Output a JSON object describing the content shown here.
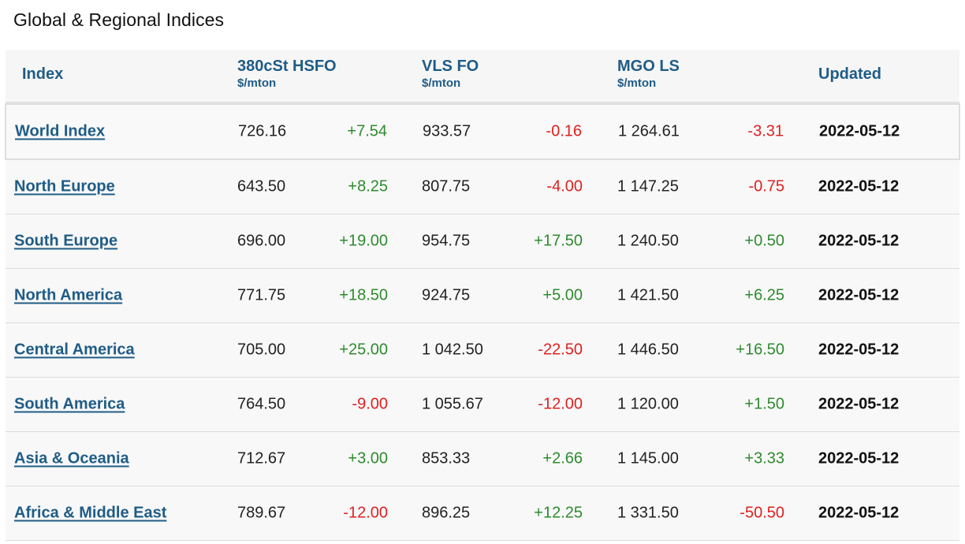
{
  "title": "Global & Regional Indices",
  "headers": {
    "index": "Index",
    "hsfo": "380cSt HSFO",
    "hsfo_unit": "$/mton",
    "vls": "VLS FO",
    "vls_unit": "$/mton",
    "mgo": "MGO LS",
    "mgo_unit": "$/mton",
    "updated": "Updated"
  },
  "colors": {
    "link": "#1f5c86",
    "positive": "#2e8b2e",
    "negative": "#e02020"
  },
  "rows": [
    {
      "name": "World Index",
      "hsfo": "726.16",
      "hsfo_chg": "+7.54",
      "vls": "933.57",
      "vls_chg": "-0.16",
      "mgo": "1 264.61",
      "mgo_chg": "-3.31",
      "updated": "2022-05-12"
    },
    {
      "name": "North Europe",
      "hsfo": "643.50",
      "hsfo_chg": "+8.25",
      "vls": "807.75",
      "vls_chg": "-4.00",
      "mgo": "1 147.25",
      "mgo_chg": "-0.75",
      "updated": "2022-05-12"
    },
    {
      "name": "South Europe",
      "hsfo": "696.00",
      "hsfo_chg": "+19.00",
      "vls": "954.75",
      "vls_chg": "+17.50",
      "mgo": "1 240.50",
      "mgo_chg": "+0.50",
      "updated": "2022-05-12"
    },
    {
      "name": "North America",
      "hsfo": "771.75",
      "hsfo_chg": "+18.50",
      "vls": "924.75",
      "vls_chg": "+5.00",
      "mgo": "1 421.50",
      "mgo_chg": "+6.25",
      "updated": "2022-05-12"
    },
    {
      "name": "Central America",
      "hsfo": "705.00",
      "hsfo_chg": "+25.00",
      "vls": "1 042.50",
      "vls_chg": "-22.50",
      "mgo": "1 446.50",
      "mgo_chg": "+16.50",
      "updated": "2022-05-12"
    },
    {
      "name": "South America",
      "hsfo": "764.50",
      "hsfo_chg": "-9.00",
      "vls": "1 055.67",
      "vls_chg": "-12.00",
      "mgo": "1 120.00",
      "mgo_chg": "+1.50",
      "updated": "2022-05-12"
    },
    {
      "name": "Asia & Oceania",
      "hsfo": "712.67",
      "hsfo_chg": "+3.00",
      "vls": "853.33",
      "vls_chg": "+2.66",
      "mgo": "1 145.00",
      "mgo_chg": "+3.33",
      "updated": "2022-05-12"
    },
    {
      "name": "Africa & Middle East",
      "hsfo": "789.67",
      "hsfo_chg": "-12.00",
      "vls": "896.25",
      "vls_chg": "+12.25",
      "mgo": "1 331.50",
      "mgo_chg": "-50.50",
      "updated": "2022-05-12"
    }
  ]
}
